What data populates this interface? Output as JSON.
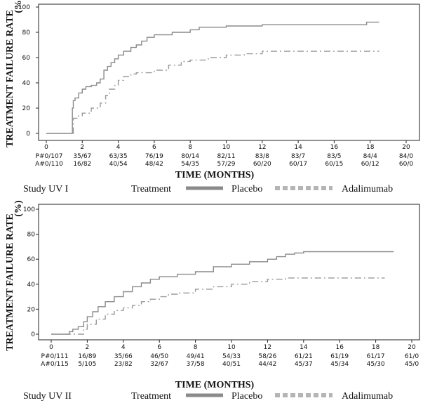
{
  "chart_data": [
    {
      "type": "line",
      "study_label": "Study UV I",
      "ylabel": "TREATMENT FAILURE RATE",
      "ylabel2": "(%)",
      "xlabel": "TIME (MONTHS)",
      "xlim": [
        0,
        20
      ],
      "ylim": [
        0,
        100
      ],
      "x_ticks": [
        0,
        2,
        4,
        6,
        8,
        10,
        12,
        14,
        16,
        18,
        20
      ],
      "y_ticks": [
        0,
        20,
        40,
        60,
        80,
        100
      ],
      "series": [
        {
          "name": "Placebo",
          "color": "#8a8a8a",
          "style": "solid",
          "x": [
            0,
            1.4,
            1.45,
            1.5,
            1.6,
            1.8,
            2.0,
            2.2,
            2.5,
            2.8,
            3.0,
            3.2,
            3.4,
            3.6,
            3.8,
            4.0,
            4.3,
            4.7,
            5.0,
            5.3,
            5.6,
            6.0,
            7.0,
            8.0,
            8.5,
            10.0,
            12.0,
            14.0,
            16.0,
            17.0,
            17.8,
            18.5
          ],
          "y": [
            0,
            0,
            20,
            26,
            28,
            32,
            35,
            37,
            38,
            40,
            43,
            50,
            53,
            56,
            59,
            62,
            65,
            68,
            70,
            73,
            76,
            78,
            80,
            82,
            84,
            85,
            86,
            86,
            86,
            86,
            88,
            88
          ]
        },
        {
          "name": "Adalimumab",
          "color": "#9a9a9a",
          "style": "dashed",
          "x": [
            0,
            1.4,
            1.5,
            1.8,
            2.0,
            2.5,
            3.0,
            3.3,
            3.5,
            3.8,
            4.0,
            4.3,
            4.7,
            5.0,
            6.0,
            6.8,
            7.5,
            8.0,
            9.0,
            10.0,
            11.0,
            12.0,
            14.0,
            16.0,
            18.0,
            18.5
          ],
          "y": [
            0,
            0,
            12,
            14,
            16,
            20,
            24,
            30,
            35,
            38,
            42,
            45,
            47,
            48,
            50,
            54,
            57,
            58,
            60,
            62,
            63,
            65,
            65,
            65,
            65,
            65
          ]
        }
      ],
      "risk_table": {
        "rows": [
          {
            "label": "P#0/107",
            "values": [
              "35/67",
              "63/35",
              "76/19",
              "80/14",
              "82/11",
              "83/8",
              "83/7",
              "83/5",
              "84/4",
              "84/0"
            ]
          },
          {
            "label": "A#0/110",
            "values": [
              "16/82",
              "40/54",
              "48/42",
              "54/35",
              "57/29",
              "60/20",
              "60/17",
              "60/15",
              "60/12",
              "60/0"
            ]
          }
        ]
      },
      "legend": {
        "treatment_label": "Treatment",
        "placebo_label": "Placebo",
        "adalimumab_label": "Adalimumab"
      }
    },
    {
      "type": "line",
      "study_label": "Study UV II",
      "ylabel": "TREATMENT FAILURE RATE",
      "ylabel2": "(%)",
      "xlabel": "TIME (MONTHS)",
      "xlim": [
        0,
        20
      ],
      "ylim": [
        0,
        100
      ],
      "x_ticks": [
        0,
        2,
        4,
        6,
        8,
        10,
        12,
        14,
        16,
        18,
        20
      ],
      "y_ticks": [
        0,
        20,
        40,
        60,
        80,
        100
      ],
      "series": [
        {
          "name": "Placebo",
          "color": "#8a8a8a",
          "style": "solid",
          "x": [
            0,
            0.8,
            1.0,
            1.2,
            1.5,
            1.8,
            2.0,
            2.3,
            2.6,
            3.0,
            3.5,
            4.0,
            4.5,
            5.0,
            5.5,
            6.0,
            7.0,
            8.0,
            9.0,
            10.0,
            11.0,
            12.0,
            12.5,
            13.0,
            13.5,
            14.0,
            16.0,
            18.0,
            19.0
          ],
          "y": [
            0,
            0,
            2,
            4,
            6,
            10,
            14,
            18,
            22,
            26,
            30,
            34,
            38,
            41,
            44,
            46,
            48,
            50,
            54,
            56,
            58,
            60,
            62,
            64,
            65,
            66,
            66,
            66,
            66
          ]
        },
        {
          "name": "Adalimumab",
          "color": "#9a9a9a",
          "style": "dashed",
          "x": [
            0,
            1.5,
            1.8,
            2.0,
            2.5,
            3.0,
            3.5,
            4.0,
            4.5,
            5.0,
            5.5,
            6.0,
            6.5,
            7.0,
            8.0,
            9.0,
            10.0,
            11.0,
            12.0,
            13.0,
            14.0,
            16.0,
            18.0,
            18.5
          ],
          "y": [
            0,
            0,
            4,
            8,
            12,
            16,
            19,
            21,
            23,
            26,
            28,
            30,
            32,
            33,
            36,
            38,
            40,
            42,
            44,
            45,
            45,
            45,
            45,
            45
          ]
        }
      ],
      "risk_table": {
        "rows": [
          {
            "label": "P#0/111",
            "values": [
              "16/89",
              "35/66",
              "46/50",
              "49/41",
              "54/33",
              "58/26",
              "61/21",
              "61/19",
              "61/17",
              "61/0"
            ]
          },
          {
            "label": "A#0/115",
            "values": [
              "5/105",
              "23/82",
              "32/67",
              "37/58",
              "40/51",
              "44/42",
              "45/37",
              "45/34",
              "45/30",
              "45/0"
            ]
          }
        ]
      },
      "legend": {
        "treatment_label": "Treatment",
        "placebo_label": "Placebo",
        "adalimumab_label": "Adalimumab"
      }
    }
  ]
}
